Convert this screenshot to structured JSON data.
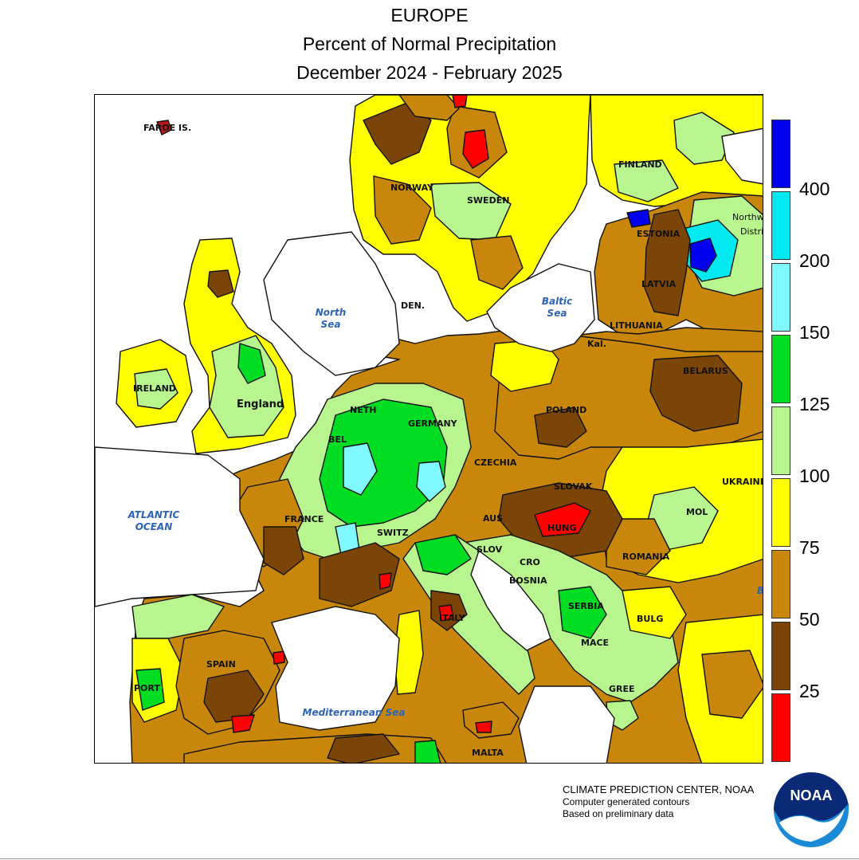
{
  "header": {
    "line1": "EUROPE",
    "line2": "Percent of Normal Precipitation",
    "line3": "December 2024 - February 2025"
  },
  "map_labels": {
    "faroe": "FAROE IS.",
    "finland": "FINLAND",
    "norway": "NORWAY",
    "sweden": "SWEDEN",
    "estonia": "ESTONIA",
    "northwest_district": "Northw",
    "northwest_district_2": "Distri",
    "latvia": "LATVIA",
    "lithuania": "LITHUANIA",
    "denmark": "DEN.",
    "kaliningrad": "Kal.",
    "belarus": "BELARUS",
    "ireland": "IRELAND",
    "england": "England",
    "netherlands": "NETH",
    "germany": "GERMANY",
    "poland": "POLAND",
    "belgium": "BEL",
    "czechia": "CZECHIA",
    "slovakia": "SLOVAK",
    "ukraine": "UKRAINE",
    "france": "FRANCE",
    "austria": "AUS",
    "hungary": "HUNG",
    "moldova": "MOL",
    "switzerland": "SWITZ",
    "slovenia": "SLOV",
    "croatia": "CRO",
    "romania": "ROMANIA",
    "bosnia": "BOSNIA",
    "serbia": "SERBIA",
    "bulgaria": "BULG",
    "italy": "ITALY",
    "macedonia": "MACE",
    "greece": "GREE",
    "spain": "SPAIN",
    "portugal": "PORT",
    "malta": "MALTA",
    "black_sea": "B"
  },
  "water_labels": {
    "north_sea_1": "North",
    "north_sea_2": "Sea",
    "baltic_1": "Baltic",
    "baltic_2": "Sea",
    "atlantic_1": "ATLANTIC",
    "atlantic_2": "OCEAN",
    "mediterranean": "Mediterranean Sea"
  },
  "legend": {
    "colors": [
      "#0000ee",
      "#00e8f0",
      "#80f8ff",
      "#00dd22",
      "#b8f58f",
      "#ffff00",
      "#c8860b",
      "#7a4507",
      "#ff0000"
    ],
    "ticks": [
      "400",
      "200",
      "150",
      "125",
      "100",
      "75",
      "50",
      "25"
    ]
  },
  "credits": {
    "line1": "CLIMATE PREDICTION CENTER, NOAA",
    "line2": "Computer generated contours",
    "line3": "Based on preliminary data"
  },
  "logo": {
    "text": "NOAA"
  }
}
